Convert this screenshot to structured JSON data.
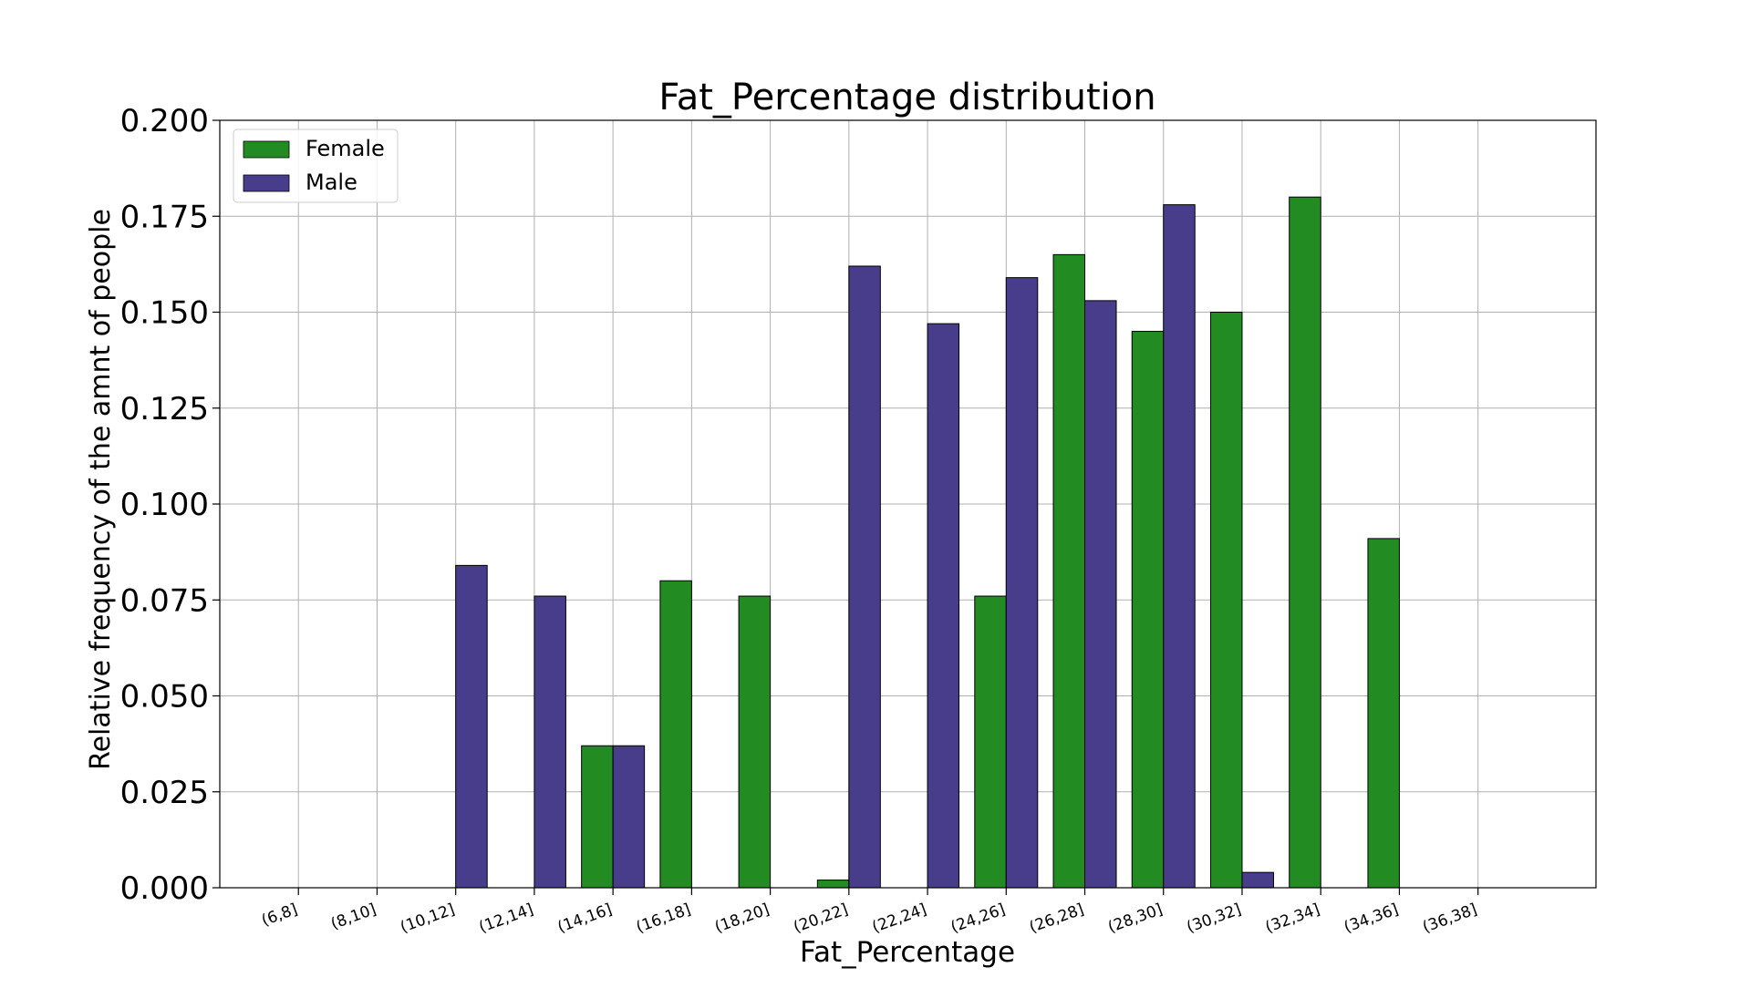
{
  "chart_data": {
    "type": "bar",
    "title": "Fat_Percentage distribution",
    "xlabel": "Fat_Percentage",
    "ylabel": "Relative frequency of the amnt of people",
    "ylim": [
      0,
      0.2
    ],
    "yticks": [
      "0.000",
      "0.025",
      "0.050",
      "0.075",
      "0.100",
      "0.125",
      "0.150",
      "0.175",
      "0.200"
    ],
    "grid": true,
    "legend_position": "top-left",
    "categories": [
      "(6,8]",
      "(8,10]",
      "(10,12]",
      "(12,14]",
      "(14,16]",
      "(16,18]",
      "(18,20]",
      "(20,22]",
      "(22,24]",
      "(24,26]",
      "(26,28]",
      "(28,30]",
      "(30,32]",
      "(32,34]",
      "(34,36]",
      "(36,38]"
    ],
    "series": [
      {
        "name": "Female",
        "color": "#228b22",
        "values": [
          0,
          0,
          0,
          0,
          0.037,
          0.08,
          0.076,
          0.002,
          0,
          0.076,
          0.165,
          0.145,
          0.15,
          0.18,
          0.091,
          0
        ]
      },
      {
        "name": "Male",
        "color": "#483d8b",
        "values": [
          0,
          0,
          0.084,
          0.076,
          0.037,
          0,
          0,
          0.162,
          0.147,
          0.159,
          0.153,
          0.178,
          0.004,
          0,
          0,
          0
        ]
      }
    ]
  }
}
